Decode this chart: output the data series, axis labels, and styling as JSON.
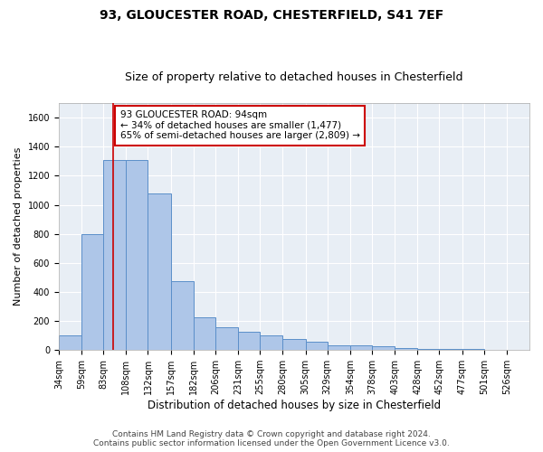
{
  "title1": "93, GLOUCESTER ROAD, CHESTERFIELD, S41 7EF",
  "title2": "Size of property relative to detached houses in Chesterfield",
  "xlabel": "Distribution of detached houses by size in Chesterfield",
  "ylabel": "Number of detached properties",
  "bin_labels": [
    "34sqm",
    "59sqm",
    "83sqm",
    "108sqm",
    "132sqm",
    "157sqm",
    "182sqm",
    "206sqm",
    "231sqm",
    "255sqm",
    "280sqm",
    "305sqm",
    "329sqm",
    "354sqm",
    "378sqm",
    "403sqm",
    "428sqm",
    "452sqm",
    "477sqm",
    "501sqm",
    "526sqm"
  ],
  "bar_values": [
    100,
    800,
    1310,
    1310,
    1075,
    475,
    225,
    155,
    125,
    100,
    75,
    55,
    30,
    30,
    25,
    12,
    8,
    5,
    5,
    3,
    3
  ],
  "bin_edges": [
    34,
    59,
    83,
    108,
    132,
    157,
    182,
    206,
    231,
    255,
    280,
    305,
    329,
    354,
    378,
    403,
    428,
    452,
    477,
    501,
    526,
    551
  ],
  "bar_color": "#aec6e8",
  "bar_edge_color": "#5b8fc9",
  "property_size": 94,
  "property_line_color": "#cc0000",
  "annotation_line1": "93 GLOUCESTER ROAD: 94sqm",
  "annotation_line2": "← 34% of detached houses are smaller (1,477)",
  "annotation_line3": "65% of semi-detached houses are larger (2,809) →",
  "annotation_box_color": "#ffffff",
  "annotation_box_edge": "#cc0000",
  "ylim": [
    0,
    1700
  ],
  "yticks": [
    0,
    200,
    400,
    600,
    800,
    1000,
    1200,
    1400,
    1600
  ],
  "footer1": "Contains HM Land Registry data © Crown copyright and database right 2024.",
  "footer2": "Contains public sector information licensed under the Open Government Licence v3.0.",
  "bg_color": "#ffffff",
  "plot_bg_color": "#e8eef5",
  "grid_color": "#ffffff",
  "title1_fontsize": 10,
  "title2_fontsize": 9,
  "xlabel_fontsize": 8.5,
  "ylabel_fontsize": 8,
  "tick_fontsize": 7,
  "annotation_fontsize": 7.5,
  "footer_fontsize": 6.5
}
